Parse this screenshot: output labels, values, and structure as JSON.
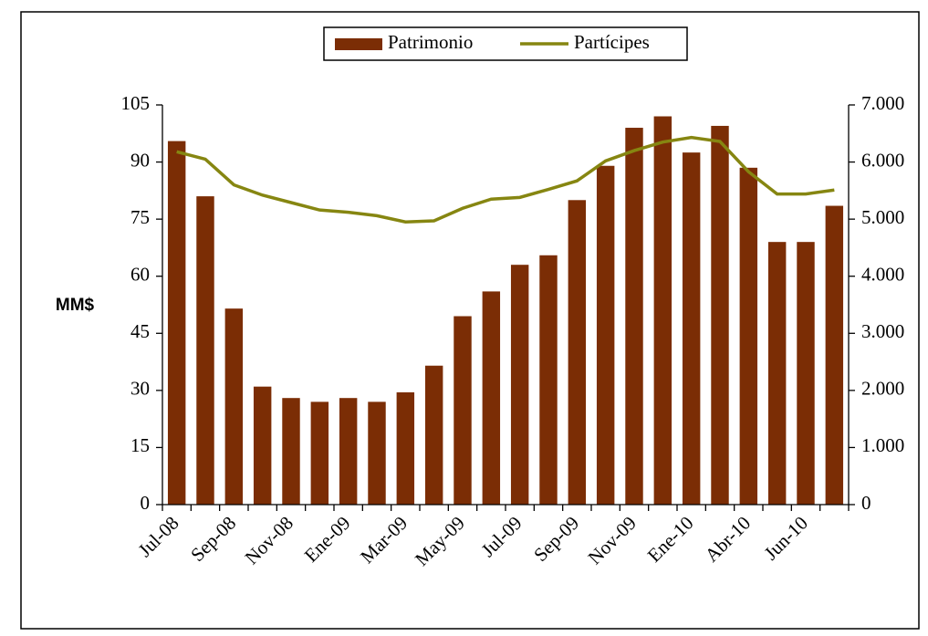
{
  "chart_data": {
    "type": "bar",
    "ylabel": "MM$",
    "categories": [
      "Jul-08",
      null,
      "Sep-08",
      null,
      "Nov-08",
      null,
      "Ene-09",
      null,
      "Mar-09",
      null,
      "May-09",
      null,
      "Jul-09",
      null,
      "Sep-09",
      null,
      "Nov-09",
      null,
      "Ene-10",
      null,
      "Abr-10",
      null,
      "Jun-10",
      null
    ],
    "series": [
      {
        "name": "Patrimonio",
        "color": "#7b2d05",
        "values": [
          95.5,
          81,
          51.5,
          31,
          28,
          27,
          28,
          27,
          29.5,
          36.5,
          49.5,
          56,
          63,
          65.5,
          80,
          89,
          99,
          102,
          92.5,
          99.5,
          88.5,
          69,
          69,
          78.5
        ]
      },
      {
        "name": "Partícipes",
        "color": "#868611",
        "type": "line",
        "axis": "y2",
        "values": [
          6180,
          6050,
          5600,
          5420,
          5290,
          5160,
          5120,
          5060,
          4950,
          4970,
          5190,
          5350,
          5380,
          5520,
          5670,
          6020,
          6200,
          6350,
          6430,
          6360,
          5830,
          5440,
          5440,
          5510
        ]
      }
    ],
    "ylim": [
      0,
      105
    ],
    "yticks": [
      0,
      15,
      30,
      45,
      60,
      75,
      90,
      105
    ],
    "y2lim": [
      0,
      7000
    ],
    "y2ticks": [
      0,
      {
        "value": 1000,
        "label": "1.000"
      },
      {
        "value": 2000,
        "label": "2.000"
      },
      {
        "value": 3000,
        "label": "3.000"
      },
      {
        "value": 4000,
        "label": "4.000"
      },
      {
        "value": 5000,
        "label": "5.000"
      },
      {
        "value": 6000,
        "label": "6.000"
      },
      {
        "value": 7000,
        "label": "7.000"
      }
    ],
    "legend": "top"
  }
}
